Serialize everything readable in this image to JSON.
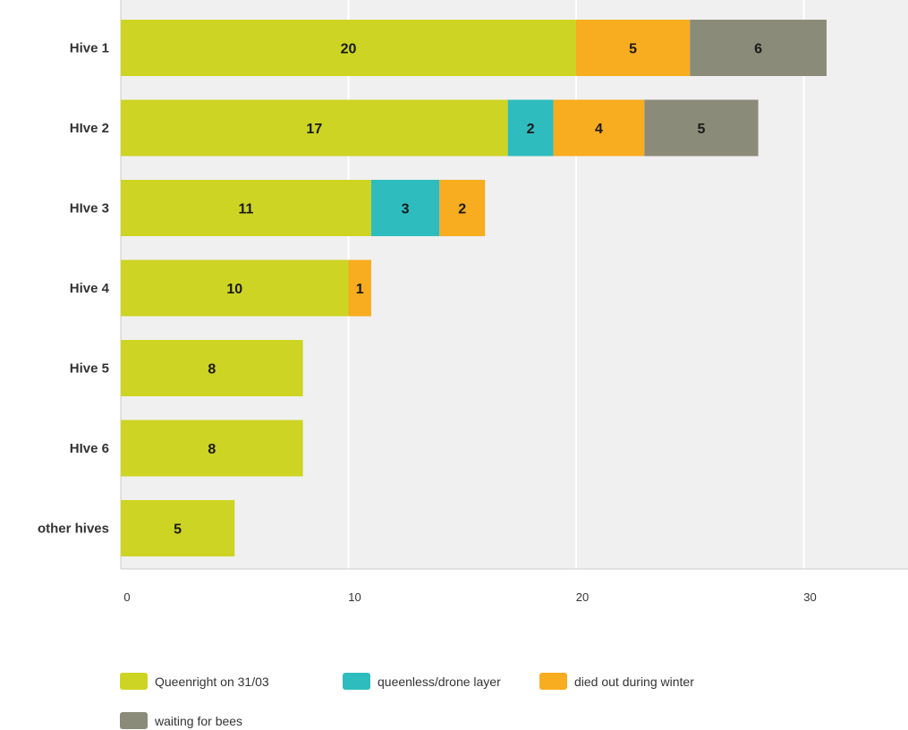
{
  "chart_data": {
    "type": "bar",
    "orientation": "horizontal",
    "stacked": true,
    "categories": [
      "Hive 1",
      "HIve 2",
      "HIve 3",
      "Hive 4",
      "Hive 5",
      "HIve 6",
      "other hives"
    ],
    "series": [
      {
        "name": "Queenright on 31/03",
        "color": "#cdd424",
        "values": [
          20,
          17,
          11,
          10,
          8,
          8,
          5
        ]
      },
      {
        "name": "queenless/drone layer",
        "color": "#2fbcbf",
        "values": [
          0,
          2,
          3,
          0,
          0,
          0,
          0
        ]
      },
      {
        "name": "died out during winter",
        "color": "#f8ac20",
        "values": [
          5,
          4,
          2,
          1,
          0,
          0,
          0
        ]
      },
      {
        "name": "waiting for bees",
        "color": "#8b8b7a",
        "values": [
          6,
          5,
          0,
          0,
          0,
          0,
          0
        ]
      }
    ],
    "x_ticks": [
      "0",
      "10",
      "20",
      "30"
    ],
    "xlim": [
      0,
      34.8
    ],
    "grid": true,
    "plot_background": "#f0f0f0",
    "gridline_color": "#ffffff",
    "legend_position": "bottom-left",
    "data_labels": true
  }
}
